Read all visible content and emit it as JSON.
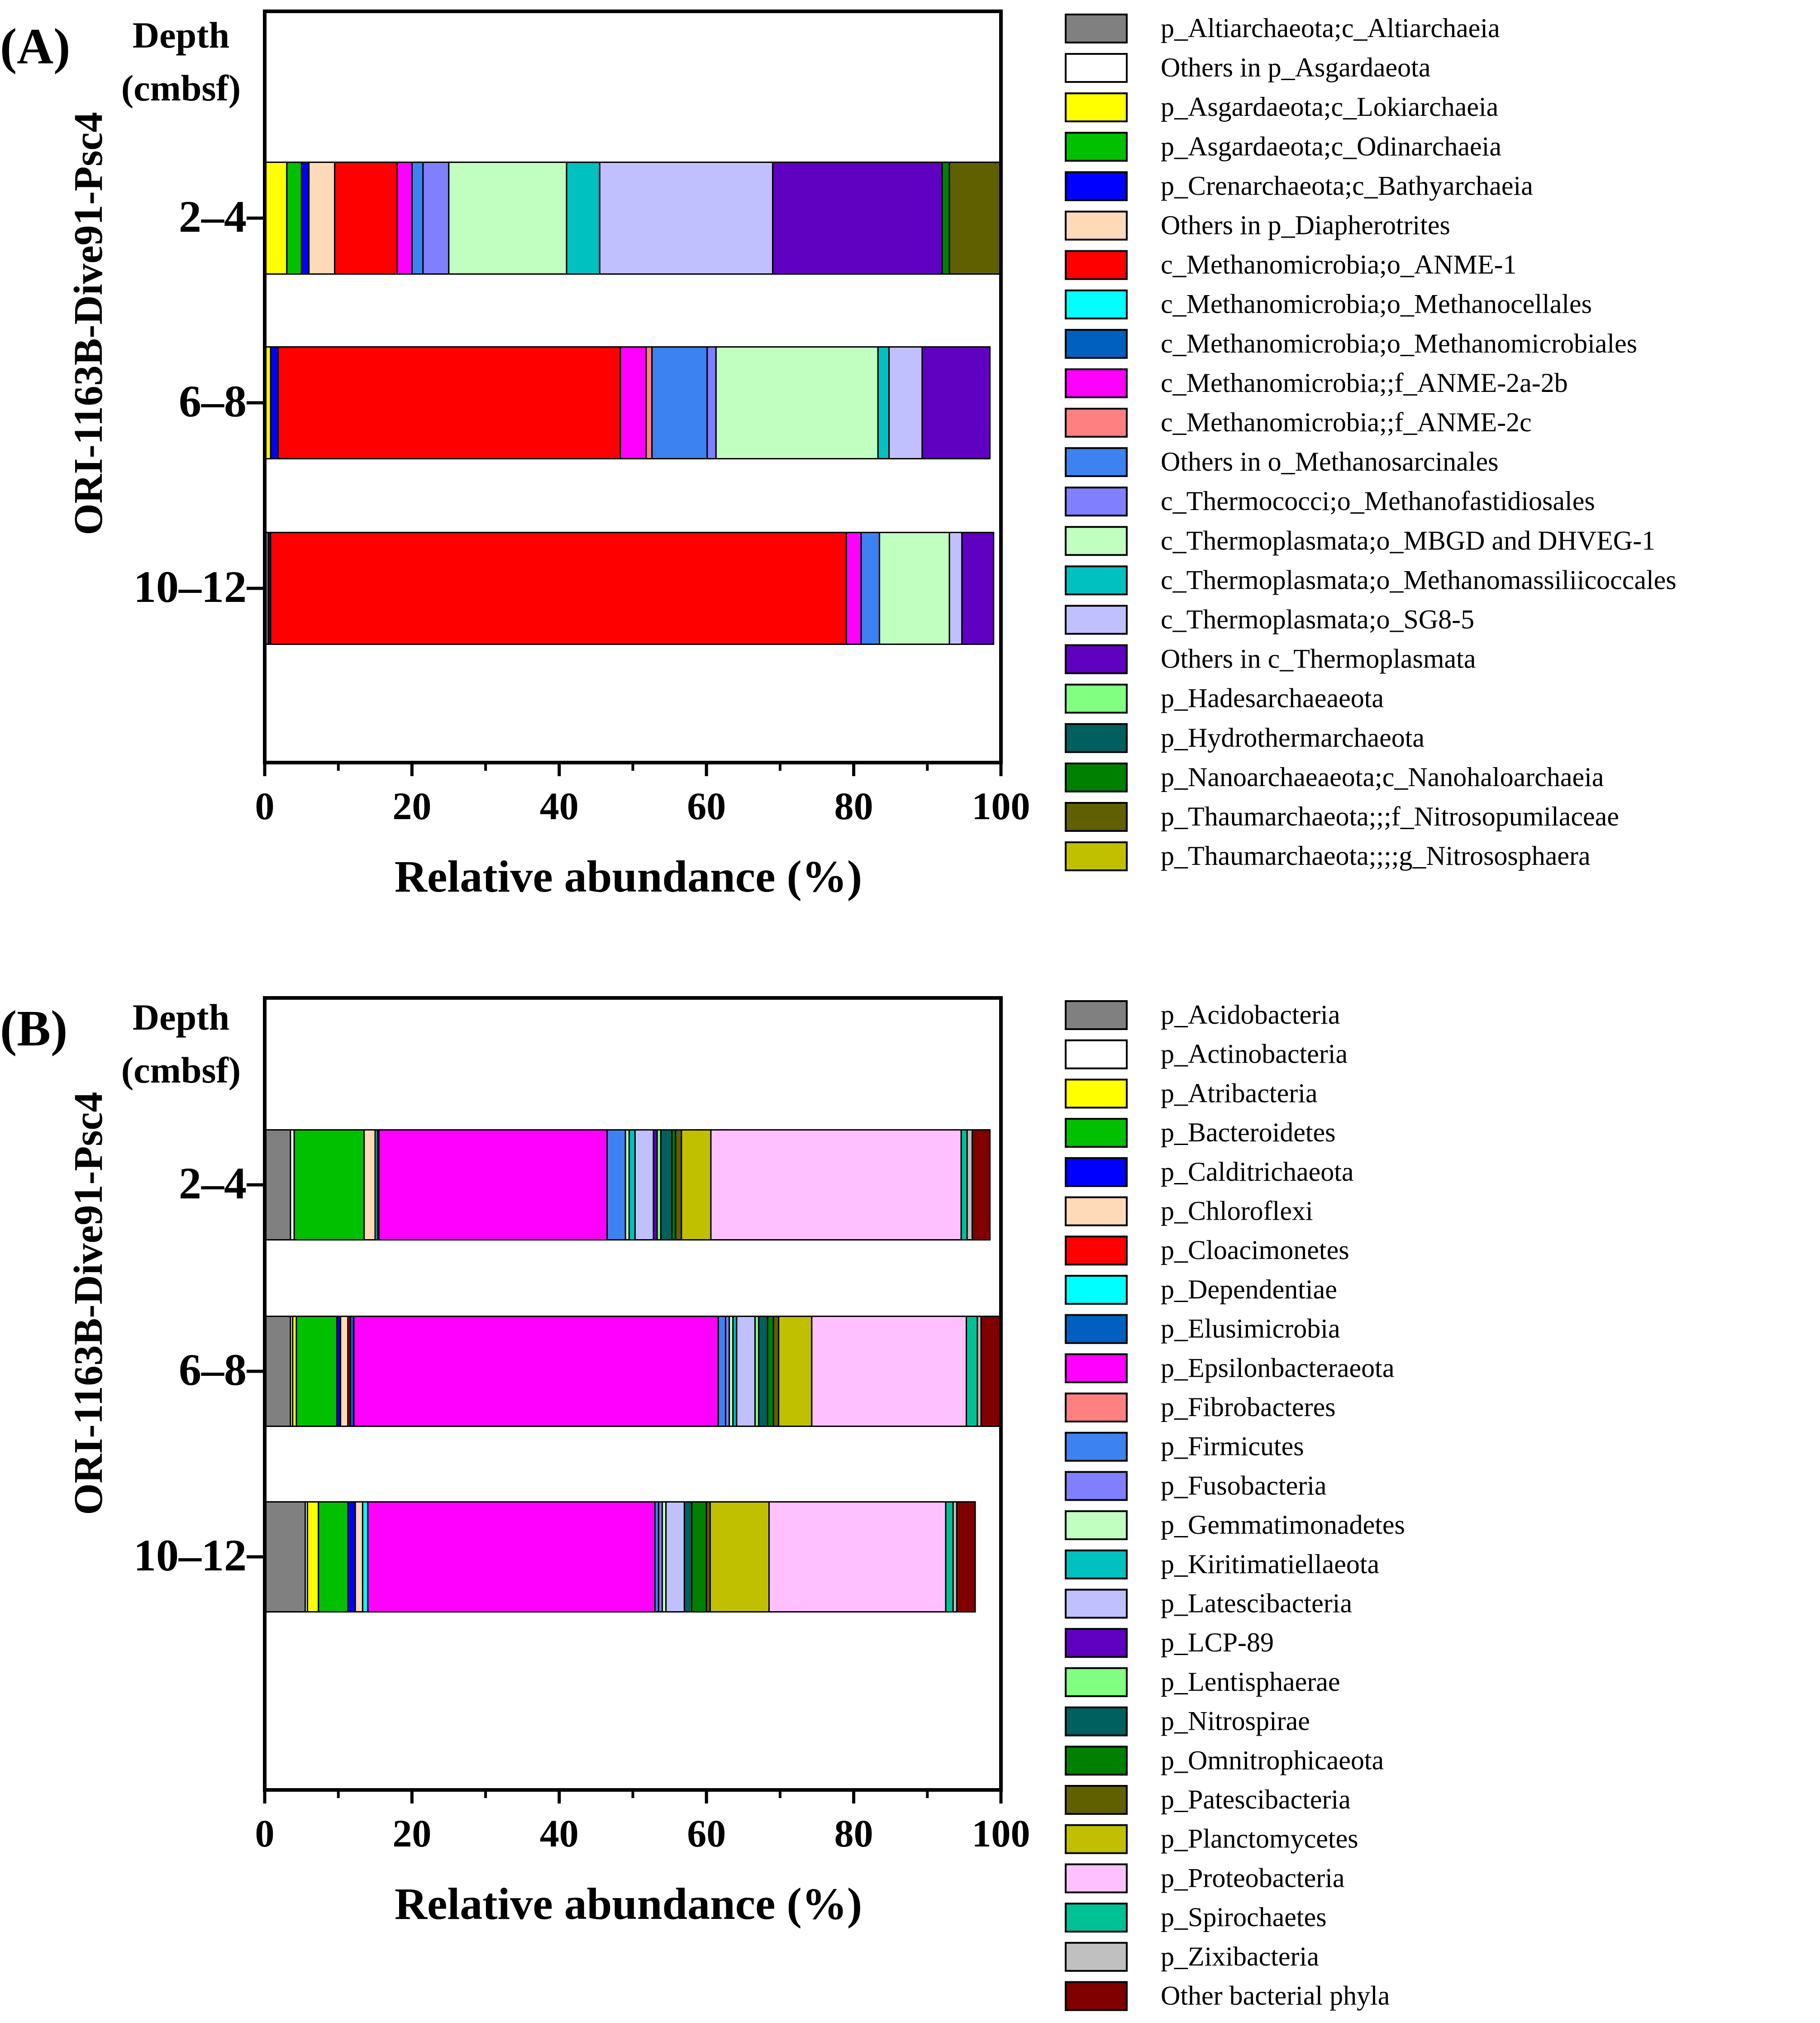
{
  "chart_data": [
    {
      "panel_label": "(A)",
      "type": "bar",
      "orientation": "horizontal",
      "stacked": true,
      "ylabel": "ORI-1163B-Dive91-Psc4",
      "depth_header": [
        "Depth",
        "(cmbsf)"
      ],
      "xlabel": "Relative abundance (%)",
      "xlim": [
        0,
        100
      ],
      "xticks": [
        "0",
        "20",
        "40",
        "60",
        "80",
        "100"
      ],
      "categories": [
        "2–4",
        "6–8",
        "10–12"
      ],
      "legend_position": "right",
      "series": [
        {
          "name": "p_Altiarchaeota;c_Altiarchaeia",
          "color": "#808080",
          "values": [
            0,
            0,
            0.5
          ]
        },
        {
          "name": "Others in p_Asgardaeota",
          "color": "#ffffff",
          "values": [
            0,
            0,
            0
          ]
        },
        {
          "name": "p_Asgardaeota;c_Lokiarchaeia",
          "color": "#ffff00",
          "values": [
            3,
            0.8,
            0
          ]
        },
        {
          "name": "p_Asgardaeota;c_Odinarchaeia",
          "color": "#00c000",
          "values": [
            2,
            0,
            0
          ]
        },
        {
          "name": "p_Crenarchaeota;c_Bathyarchaeia",
          "color": "#0000ff",
          "values": [
            1,
            1,
            0.3
          ]
        },
        {
          "name": "Others in p_Diapherotrites",
          "color": "#ffdab9",
          "values": [
            3.5,
            0,
            0
          ]
        },
        {
          "name": "c_Methanomicrobia;o_ANME-1",
          "color": "#ff0000",
          "values": [
            8.5,
            46.5,
            78.2
          ]
        },
        {
          "name": "c_Methanomicrobia;o_Methanocellales",
          "color": "#00ffff",
          "values": [
            0,
            0,
            0
          ]
        },
        {
          "name": "c_Methanomicrobia;o_Methanomicrobiales",
          "color": "#0060c0",
          "values": [
            0,
            0,
            0
          ]
        },
        {
          "name": "c_Methanomicrobia;;f_ANME-2a-2b",
          "color": "#ff00ff",
          "values": [
            2,
            3.5,
            2
          ]
        },
        {
          "name": "c_Methanomicrobia;;f_ANME-2c",
          "color": "#ff8080",
          "values": [
            0,
            0.8,
            0
          ]
        },
        {
          "name": "Others in o_Methanosarcinales",
          "color": "#3c82f0",
          "values": [
            1.5,
            7.5,
            2.5
          ]
        },
        {
          "name": "c_Thermococci;o_Methanofastidiosales",
          "color": "#8080ff",
          "values": [
            3.5,
            1.2,
            0
          ]
        },
        {
          "name": "c_Thermoplasmata;o_MBGD and DHVEG-1",
          "color": "#c0ffc0",
          "values": [
            16,
            22,
            9.5
          ]
        },
        {
          "name": "c_Thermoplasmata;o_Methanomassiliicoccales",
          "color": "#00c0c0",
          "values": [
            4.5,
            1.5,
            0
          ]
        },
        {
          "name": "c_Thermoplasmata;o_SG8-5",
          "color": "#c0c0ff",
          "values": [
            23.5,
            4.5,
            1.7
          ]
        },
        {
          "name": "Others in c_Thermoplasmata",
          "color": "#6000c0",
          "values": [
            23,
            9.2,
            4.3
          ]
        },
        {
          "name": "p_Hadesarchaeaeota",
          "color": "#80ff80",
          "values": [
            0,
            0,
            0
          ]
        },
        {
          "name": "p_Hydrothermarchaeota",
          "color": "#006060",
          "values": [
            0,
            0,
            0
          ]
        },
        {
          "name": "p_Nanoarchaeaeota;c_Nanohaloarchaeia",
          "color": "#008000",
          "values": [
            1,
            0,
            0
          ]
        },
        {
          "name": "p_Thaumarchaeota;;;f_Nitrosopumilaceae",
          "color": "#606000",
          "values": [
            7,
            0,
            0
          ]
        },
        {
          "name": "p_Thaumarchaeota;;;;g_Nitrososphaera",
          "color": "#c0c000",
          "values": [
            0,
            0,
            0
          ]
        }
      ]
    },
    {
      "panel_label": "(B)",
      "type": "bar",
      "orientation": "horizontal",
      "stacked": true,
      "ylabel": "ORI-1163B-Dive91-Psc4",
      "depth_header": [
        "Depth",
        "(cmbsf)"
      ],
      "xlabel": "Relative abundance (%)",
      "xlim": [
        0,
        100
      ],
      "xticks": [
        "0",
        "20",
        "40",
        "60",
        "80",
        "100"
      ],
      "categories": [
        "2–4",
        "6–8",
        "10–12"
      ],
      "legend_position": "right",
      "series": [
        {
          "name": "p_Acidobacteria",
          "color": "#808080",
          "values": [
            3.5,
            3.5,
            5.5
          ]
        },
        {
          "name": "p_Actinobacteria",
          "color": "#ffffff",
          "values": [
            0.5,
            0.3,
            0.3
          ]
        },
        {
          "name": "p_Atribacteria",
          "color": "#ffff00",
          "values": [
            0,
            0.5,
            1.5
          ]
        },
        {
          "name": "p_Bacteroidetes",
          "color": "#00c000",
          "values": [
            9.5,
            5.5,
            4
          ]
        },
        {
          "name": "p_Calditrichaeota",
          "color": "#0000ff",
          "values": [
            0,
            0.5,
            1
          ]
        },
        {
          "name": "p_Chloroflexi",
          "color": "#ffdab9",
          "values": [
            1.5,
            1,
            1
          ]
        },
        {
          "name": "p_Cloacimonetes",
          "color": "#ff0000",
          "values": [
            0,
            0.3,
            0
          ]
        },
        {
          "name": "p_Dependentiae",
          "color": "#00ffff",
          "values": [
            0.3,
            0,
            0.7
          ]
        },
        {
          "name": "p_Elusimicrobia",
          "color": "#0060c0",
          "values": [
            0.2,
            0.5,
            0
          ]
        },
        {
          "name": "p_Epsilonbacteraeota",
          "color": "#ff00ff",
          "values": [
            31,
            49.5,
            39
          ]
        },
        {
          "name": "p_Fibrobacteres",
          "color": "#ff8080",
          "values": [
            0,
            0,
            0
          ]
        },
        {
          "name": "p_Firmicutes",
          "color": "#3c82f0",
          "values": [
            2.5,
            1,
            0.5
          ]
        },
        {
          "name": "p_Fusobacteria",
          "color": "#8080ff",
          "values": [
            0,
            0.5,
            0.5
          ]
        },
        {
          "name": "p_Gemmatimonadetes",
          "color": "#c0ffc0",
          "values": [
            0.5,
            0.5,
            0.5
          ]
        },
        {
          "name": "p_Kiritimatiellaeota",
          "color": "#00c0c0",
          "values": [
            0.8,
            0.5,
            0
          ]
        },
        {
          "name": "p_Latescibacteria",
          "color": "#c0c0ff",
          "values": [
            2.5,
            2.5,
            2.5
          ]
        },
        {
          "name": "p_LCP-89",
          "color": "#6000c0",
          "values": [
            0.5,
            0,
            0
          ]
        },
        {
          "name": "p_Lentisphaerae",
          "color": "#80ff80",
          "values": [
            0.5,
            0.5,
            0
          ]
        },
        {
          "name": "p_Nitrospirae",
          "color": "#006060",
          "values": [
            1.5,
            1.2,
            1
          ]
        },
        {
          "name": "p_Omnitrophicaeota",
          "color": "#008000",
          "values": [
            0.5,
            0.8,
            2
          ]
        },
        {
          "name": "p_Patescibacteria",
          "color": "#606000",
          "values": [
            0.8,
            0.7,
            0.5
          ]
        },
        {
          "name": "p_Planctomycetes",
          "color": "#c0c000",
          "values": [
            4,
            4.5,
            8
          ]
        },
        {
          "name": "p_Proteobacteria",
          "color": "#ffc0ff",
          "values": [
            34,
            21,
            24
          ]
        },
        {
          "name": "p_Spirochaetes",
          "color": "#00c096",
          "values": [
            0.8,
            1.5,
            1
          ]
        },
        {
          "name": "p_Zixibacteria",
          "color": "#c0c0c0",
          "values": [
            0.7,
            0.5,
            0.5
          ]
        },
        {
          "name": "Other bacterial phyla",
          "color": "#800000",
          "values": [
            2.4,
            2.7,
            2.5
          ]
        }
      ]
    }
  ]
}
